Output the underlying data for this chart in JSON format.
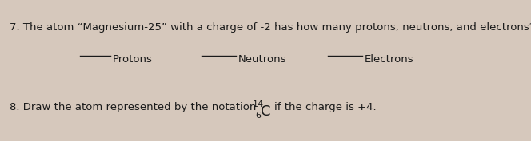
{
  "background_color": "#d6c8bc",
  "text_color": "#1a1a1a",
  "q7_number": "7.",
  "q7_text": "The atom “Magnesium-25” with a charge of -2 has how many protons, neutrons, and electrons?",
  "protons_label": "Protons",
  "neutrons_label": "Neutrons",
  "electrons_label": "Electrons",
  "q8_text_before": "8. Draw the atom represented by the notation",
  "q8_superscript": "14",
  "q8_element": "C",
  "q8_subscript": "6",
  "q8_text_after": "if the charge is +4.",
  "font_size_q7": 9.5,
  "font_size_labels": 9.5,
  "font_size_C": 13,
  "font_size_script": 8
}
